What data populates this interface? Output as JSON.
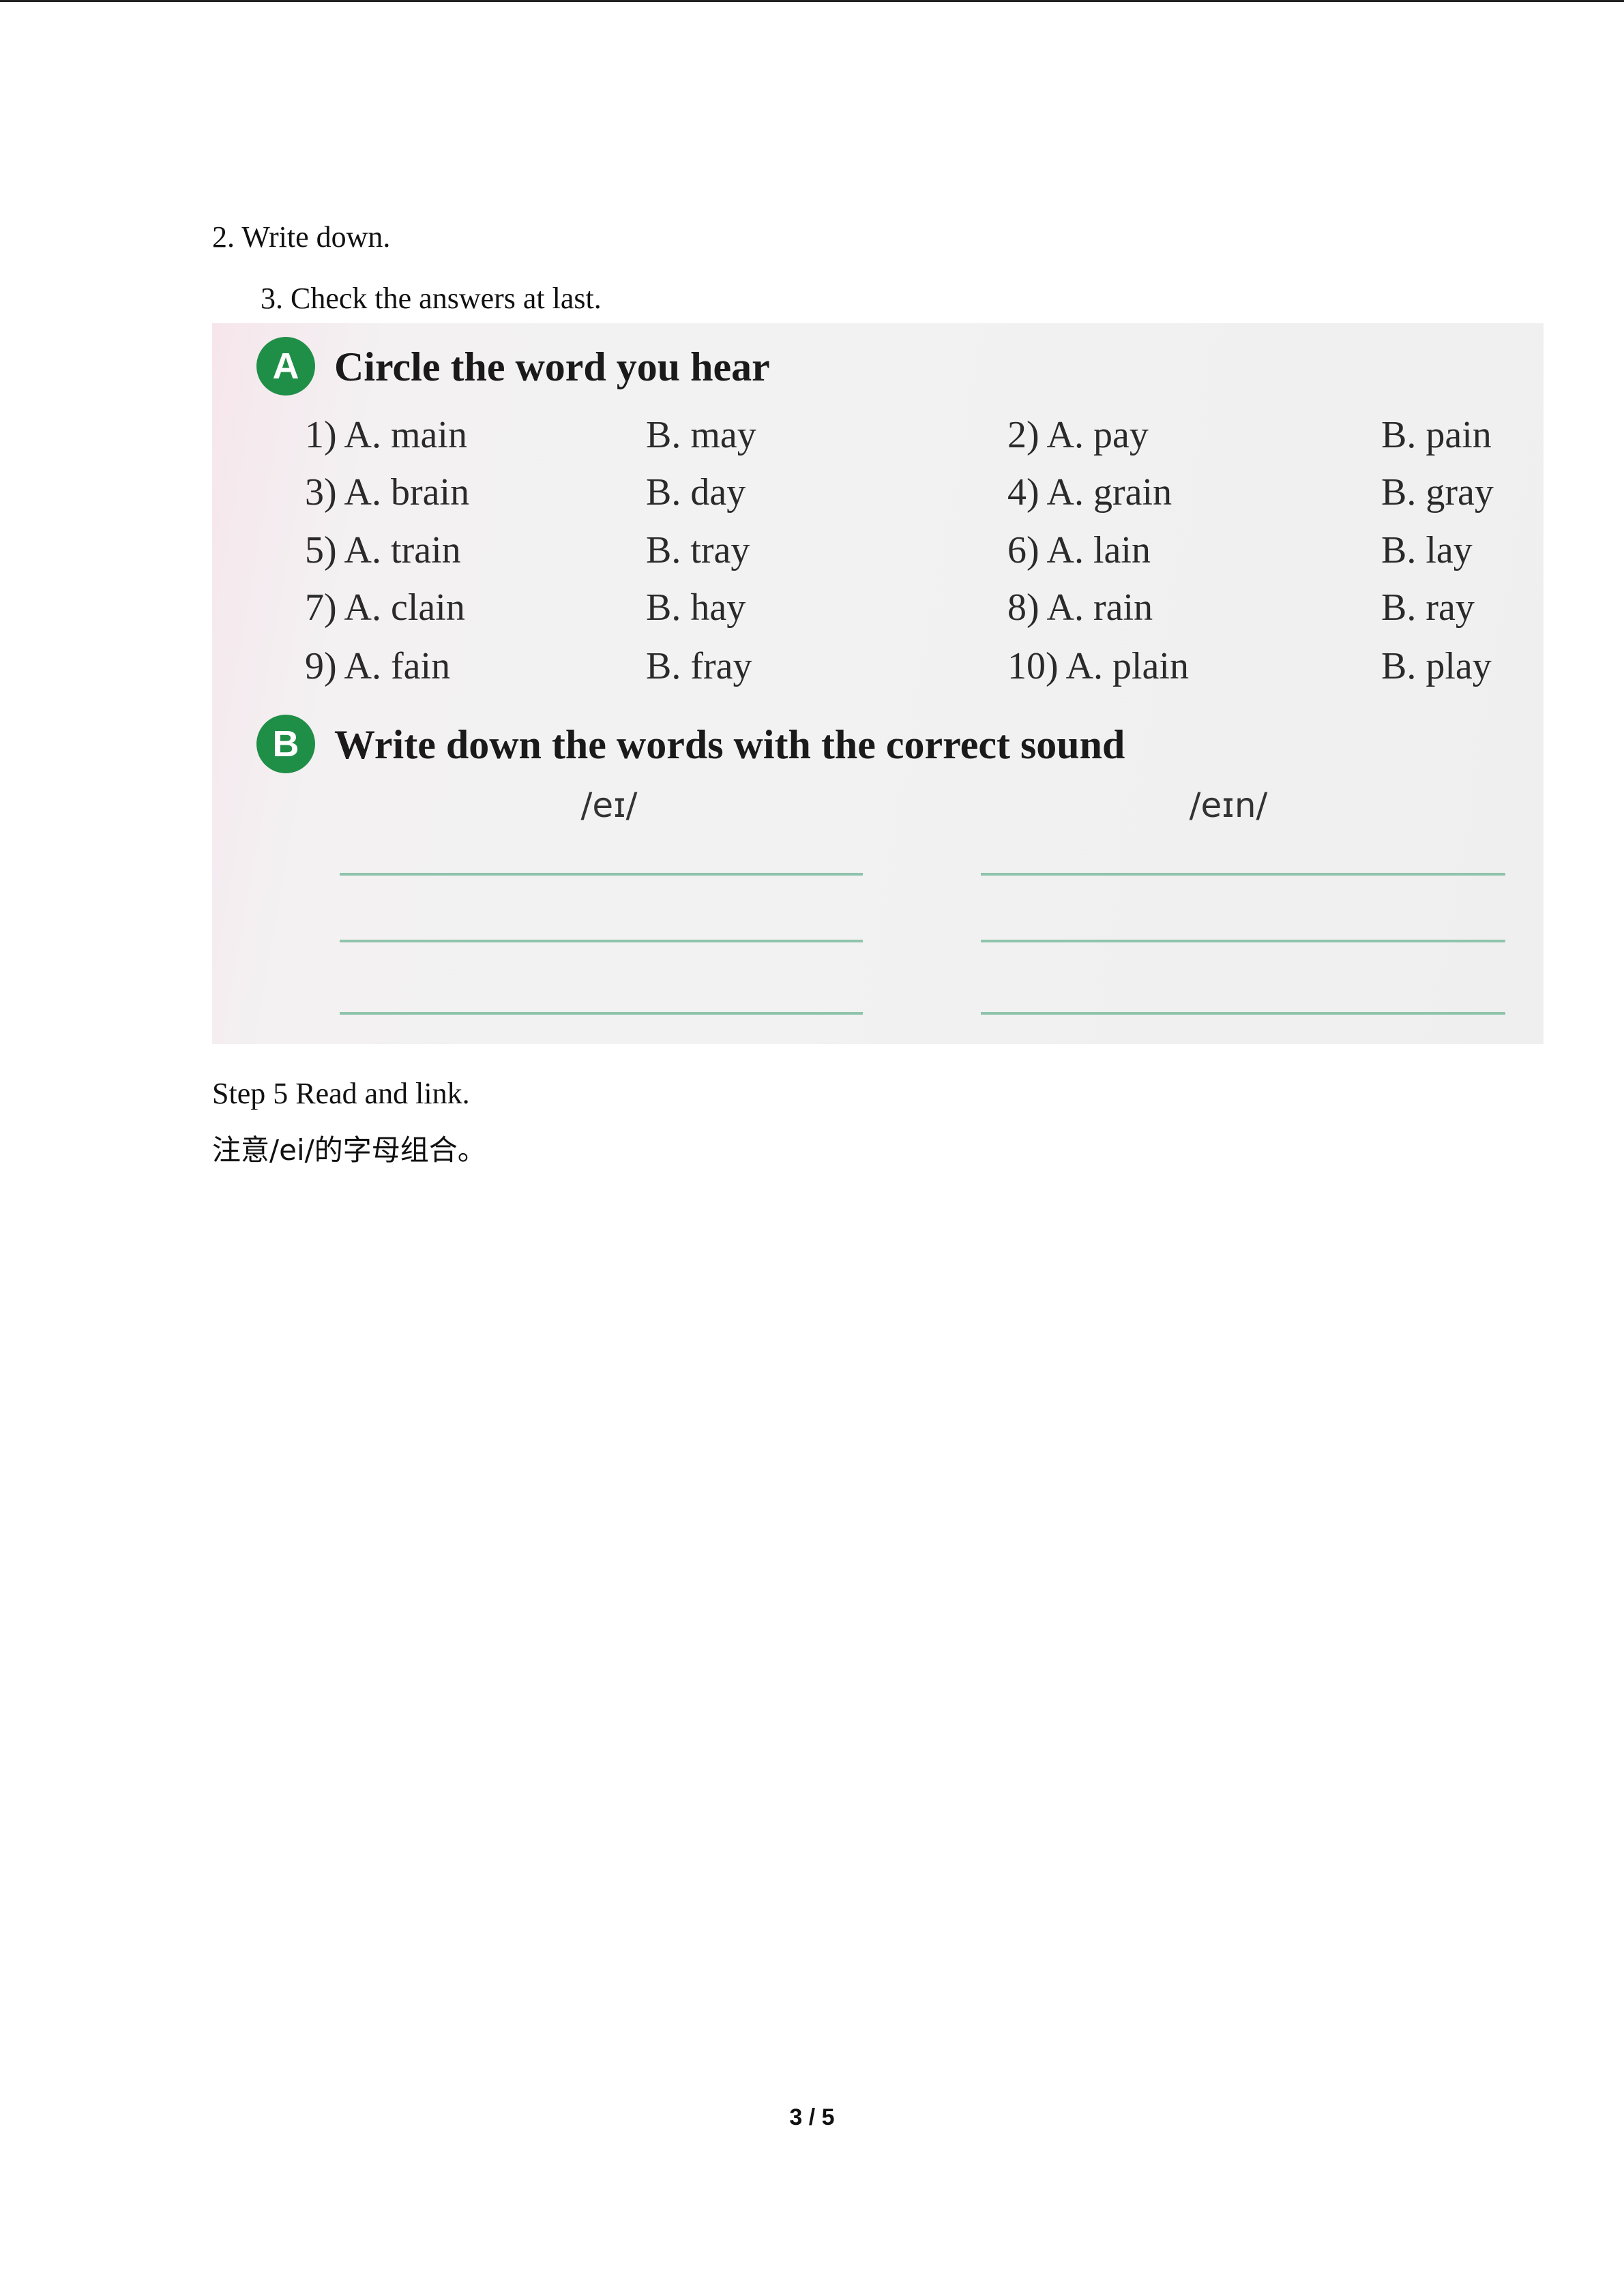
{
  "instructions": [
    "2. Write down.",
    "3. Check the answers at last."
  ],
  "exercise_a": {
    "badge": "A",
    "title": "Circle the word you hear",
    "items": [
      {
        "a": "1) A. main",
        "b": "B. may"
      },
      {
        "a": "2) A. pay",
        "b": "B. pain"
      },
      {
        "a": "3) A. brain",
        "b": "B. day"
      },
      {
        "a": "4) A. grain",
        "b": "B. gray"
      },
      {
        "a": "5) A. train",
        "b": "B. tray"
      },
      {
        "a": "6) A. lain",
        "b": "B. lay"
      },
      {
        "a": "7) A. clain",
        "b": "B. hay"
      },
      {
        "a": "8) A. rain",
        "b": "B. ray"
      },
      {
        "a": "9) A. fain",
        "b": "B. fray"
      },
      {
        "a": "10) A. plain",
        "b": "B. play"
      }
    ]
  },
  "exercise_b": {
    "badge": "B",
    "title": "Write down the words with the correct sound",
    "sounds": [
      "/eɪ/",
      "/eɪn/"
    ]
  },
  "step5": "Step 5 Read and link.",
  "note": "注意/ei/的字母组合。",
  "page_number": "3 / 5"
}
